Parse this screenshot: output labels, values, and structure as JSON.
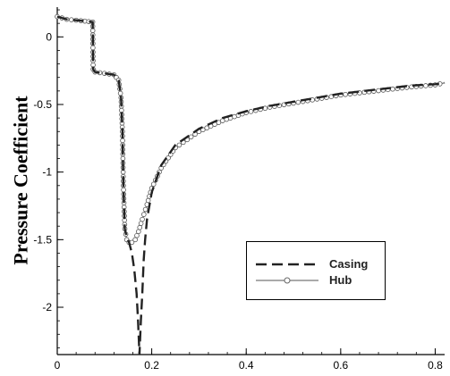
{
  "chart_data": {
    "type": "line",
    "ylabel": "Pressure Coefficient",
    "xlabel": "",
    "xlim": [
      0,
      0.82
    ],
    "ylim": [
      -2.35,
      0.22
    ],
    "x_ticks": [
      0,
      0.2,
      0.4,
      0.6,
      0.8
    ],
    "x_tick_labels": [
      "0",
      "0.2",
      "0.4",
      "0.6",
      "0.8"
    ],
    "y_ticks": [
      0,
      -0.5,
      -1,
      -1.5,
      -2
    ],
    "y_tick_labels": [
      "0",
      "-0.5",
      "-1",
      "-1.5",
      "-2"
    ],
    "legend_position": "lower-right",
    "series": [
      {
        "name": "Casing",
        "style": "dashed",
        "color": "#222222",
        "x": [
          0,
          0.02,
          0.05,
          0.075,
          0.076,
          0.08,
          0.1,
          0.12,
          0.13,
          0.135,
          0.138,
          0.14,
          0.143,
          0.147,
          0.152,
          0.158,
          0.163,
          0.168,
          0.171,
          0.174,
          0.177,
          0.18,
          0.183,
          0.186,
          0.19,
          0.2,
          0.22,
          0.25,
          0.3,
          0.35,
          0.4,
          0.45,
          0.5,
          0.55,
          0.6,
          0.65,
          0.7,
          0.75,
          0.8,
          0.82
        ],
        "y": [
          0.15,
          0.13,
          0.12,
          0.11,
          -0.24,
          -0.26,
          -0.27,
          -0.28,
          -0.32,
          -0.45,
          -0.7,
          -1.1,
          -1.42,
          -1.48,
          -1.52,
          -1.6,
          -1.72,
          -1.9,
          -2.1,
          -2.35,
          -2.1,
          -1.9,
          -1.65,
          -1.5,
          -1.35,
          -1.15,
          -0.95,
          -0.8,
          -0.68,
          -0.6,
          -0.55,
          -0.51,
          -0.48,
          -0.45,
          -0.42,
          -0.4,
          -0.38,
          -0.36,
          -0.35,
          -0.34
        ]
      },
      {
        "name": "Hub",
        "style": "solid-with-circles",
        "color": "#777777",
        "x": [
          0,
          0.02,
          0.05,
          0.075,
          0.076,
          0.08,
          0.1,
          0.12,
          0.13,
          0.135,
          0.138,
          0.14,
          0.143,
          0.147,
          0.152,
          0.158,
          0.165,
          0.172,
          0.18,
          0.19,
          0.2,
          0.22,
          0.25,
          0.3,
          0.35,
          0.4,
          0.45,
          0.5,
          0.55,
          0.6,
          0.65,
          0.7,
          0.75,
          0.8,
          0.82
        ],
        "y": [
          0.15,
          0.13,
          0.12,
          0.11,
          -0.24,
          -0.26,
          -0.27,
          -0.28,
          -0.32,
          -0.45,
          -0.7,
          -1.1,
          -1.42,
          -1.5,
          -1.52,
          -1.52,
          -1.5,
          -1.44,
          -1.35,
          -1.24,
          -1.12,
          -0.97,
          -0.82,
          -0.7,
          -0.62,
          -0.56,
          -0.52,
          -0.49,
          -0.46,
          -0.43,
          -0.41,
          -0.39,
          -0.37,
          -0.355,
          -0.34
        ]
      }
    ]
  }
}
